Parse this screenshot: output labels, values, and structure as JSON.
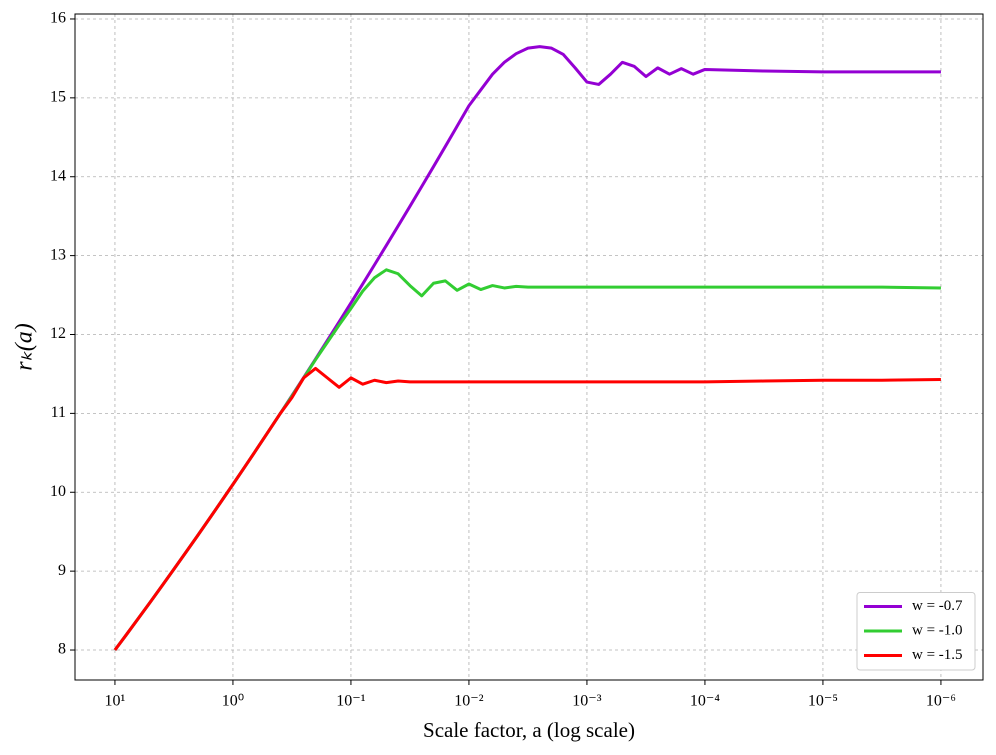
{
  "chart_data": {
    "type": "line",
    "x_label": "Scale factor, a (log scale)",
    "y_label": "rₖ(a)",
    "x_scale": "log",
    "grid": true,
    "legend_position": "lower-right",
    "xlim": [
      21.8,
      4.4e-07
    ],
    "ylim": [
      7.62,
      16.063
    ],
    "xticks": [
      {
        "value": 10,
        "label": "10¹"
      },
      {
        "value": 1,
        "label": "10⁰"
      },
      {
        "value": 0.1,
        "label": "10⁻¹"
      },
      {
        "value": 0.01,
        "label": "10⁻²"
      },
      {
        "value": 0.001,
        "label": "10⁻³"
      },
      {
        "value": 0.0001,
        "label": "10⁻⁴"
      },
      {
        "value": 1e-05,
        "label": "10⁻⁵"
      },
      {
        "value": 1e-06,
        "label": "10⁻⁶"
      }
    ],
    "yticks": [
      8,
      9,
      10,
      11,
      12,
      13,
      14,
      15,
      16
    ],
    "x": [
      10,
      7.943,
      6.31,
      5.012,
      3.981,
      3.162,
      2.512,
      1.995,
      1.585,
      1.259,
      1,
      0.7943,
      0.631,
      0.5012,
      0.3981,
      0.3162,
      0.2512,
      0.1995,
      0.1585,
      0.1259,
      0.1,
      0.07943,
      0.0631,
      0.05012,
      0.03981,
      0.03162,
      0.02512,
      0.01995,
      0.01585,
      0.01259,
      0.01,
      0.007943,
      0.00631,
      0.005012,
      0.003981,
      0.003162,
      0.002512,
      0.001995,
      0.001585,
      0.001259,
      0.001,
      0.0007943,
      0.000631,
      0.0005012,
      0.0003981,
      0.0003162,
      0.0002512,
      0.0001995,
      0.0001585,
      0.0001259,
      0.0001,
      3.162e-05,
      1e-05,
      3.162e-06,
      1e-06
    ],
    "series": [
      {
        "name": "w = -0.7",
        "color": "#9400d3",
        "values": [
          8,
          8.201,
          8.404,
          8.609,
          8.816,
          9.025,
          9.236,
          9.449,
          9.664,
          9.881,
          10.1,
          10.321,
          10.544,
          10.769,
          10.996,
          11.225,
          11.456,
          11.689,
          11.924,
          12.161,
          12.4,
          12.641,
          12.884,
          13.129,
          13.376,
          13.625,
          13.876,
          14.129,
          14.384,
          14.641,
          14.9,
          15.1,
          15.3,
          15.45,
          15.56,
          15.63,
          15.65,
          15.63,
          15.55,
          15.38,
          15.2,
          15.17,
          15.3,
          15.45,
          15.4,
          15.27,
          15.38,
          15.3,
          15.37,
          15.3,
          15.36,
          15.34,
          15.33,
          15.33,
          15.33
        ]
      },
      {
        "name": "w = -1.0",
        "color": "#32cd32",
        "values": [
          8,
          8.201,
          8.404,
          8.609,
          8.816,
          9.025,
          9.236,
          9.449,
          9.664,
          9.881,
          10.1,
          10.321,
          10.544,
          10.769,
          10.996,
          11.22,
          11.45,
          11.68,
          11.9,
          12.12,
          12.33,
          12.55,
          12.72,
          12.82,
          12.77,
          12.62,
          12.49,
          12.65,
          12.68,
          12.56,
          12.64,
          12.57,
          12.62,
          12.59,
          12.61,
          12.6,
          12.6,
          12.6,
          12.6,
          12.6,
          12.6,
          12.6,
          12.6,
          12.6,
          12.6,
          12.6,
          12.6,
          12.6,
          12.6,
          12.6,
          12.6,
          12.6,
          12.6,
          12.6,
          12.59
        ]
      },
      {
        "name": "w = -1.5",
        "color": "#ff0000",
        "values": [
          8,
          8.201,
          8.404,
          8.609,
          8.816,
          9.025,
          9.236,
          9.449,
          9.664,
          9.881,
          10.1,
          10.321,
          10.544,
          10.769,
          10.996,
          11.2,
          11.45,
          11.57,
          11.45,
          11.33,
          11.45,
          11.37,
          11.42,
          11.39,
          11.41,
          11.4,
          11.4,
          11.4,
          11.4,
          11.4,
          11.4,
          11.4,
          11.4,
          11.4,
          11.4,
          11.4,
          11.4,
          11.4,
          11.4,
          11.4,
          11.4,
          11.4,
          11.4,
          11.4,
          11.4,
          11.4,
          11.4,
          11.4,
          11.4,
          11.4,
          11.4,
          11.41,
          11.42,
          11.42,
          11.43
        ]
      }
    ]
  }
}
